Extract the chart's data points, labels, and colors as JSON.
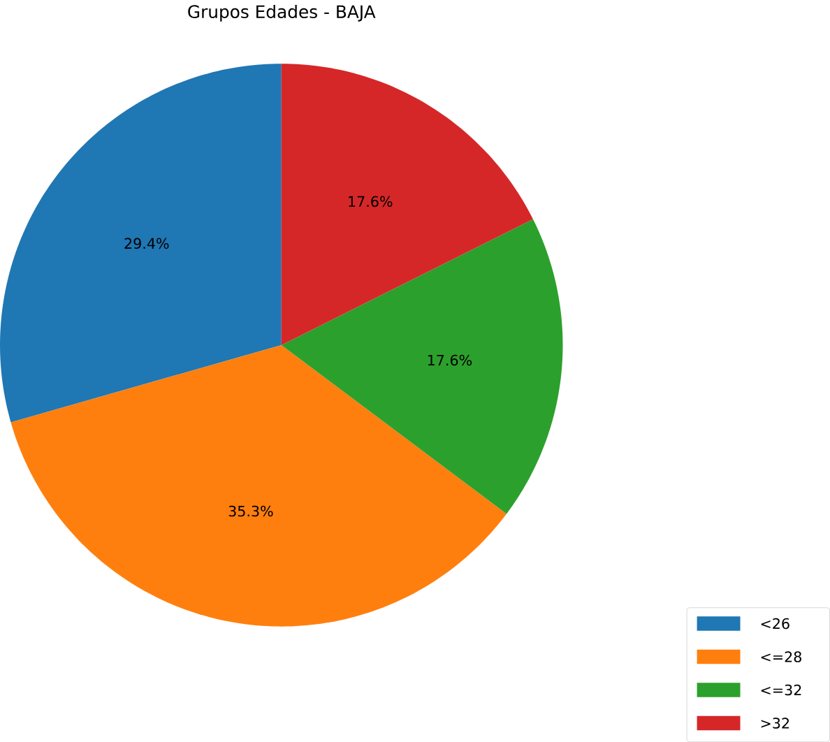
{
  "chart_data": {
    "type": "pie",
    "title": "Grupos Edades - BAJA",
    "categories": [
      "<26",
      "<=28",
      "<=32",
      ">32"
    ],
    "values": [
      29.4,
      35.3,
      17.6,
      17.6
    ],
    "value_labels": [
      "29.4%",
      "35.3%",
      "17.6%",
      "17.6%"
    ],
    "colors": [
      "#1f77b4",
      "#ff7f0e",
      "#2ca02c",
      "#d62728"
    ],
    "legend": "bottom right"
  }
}
